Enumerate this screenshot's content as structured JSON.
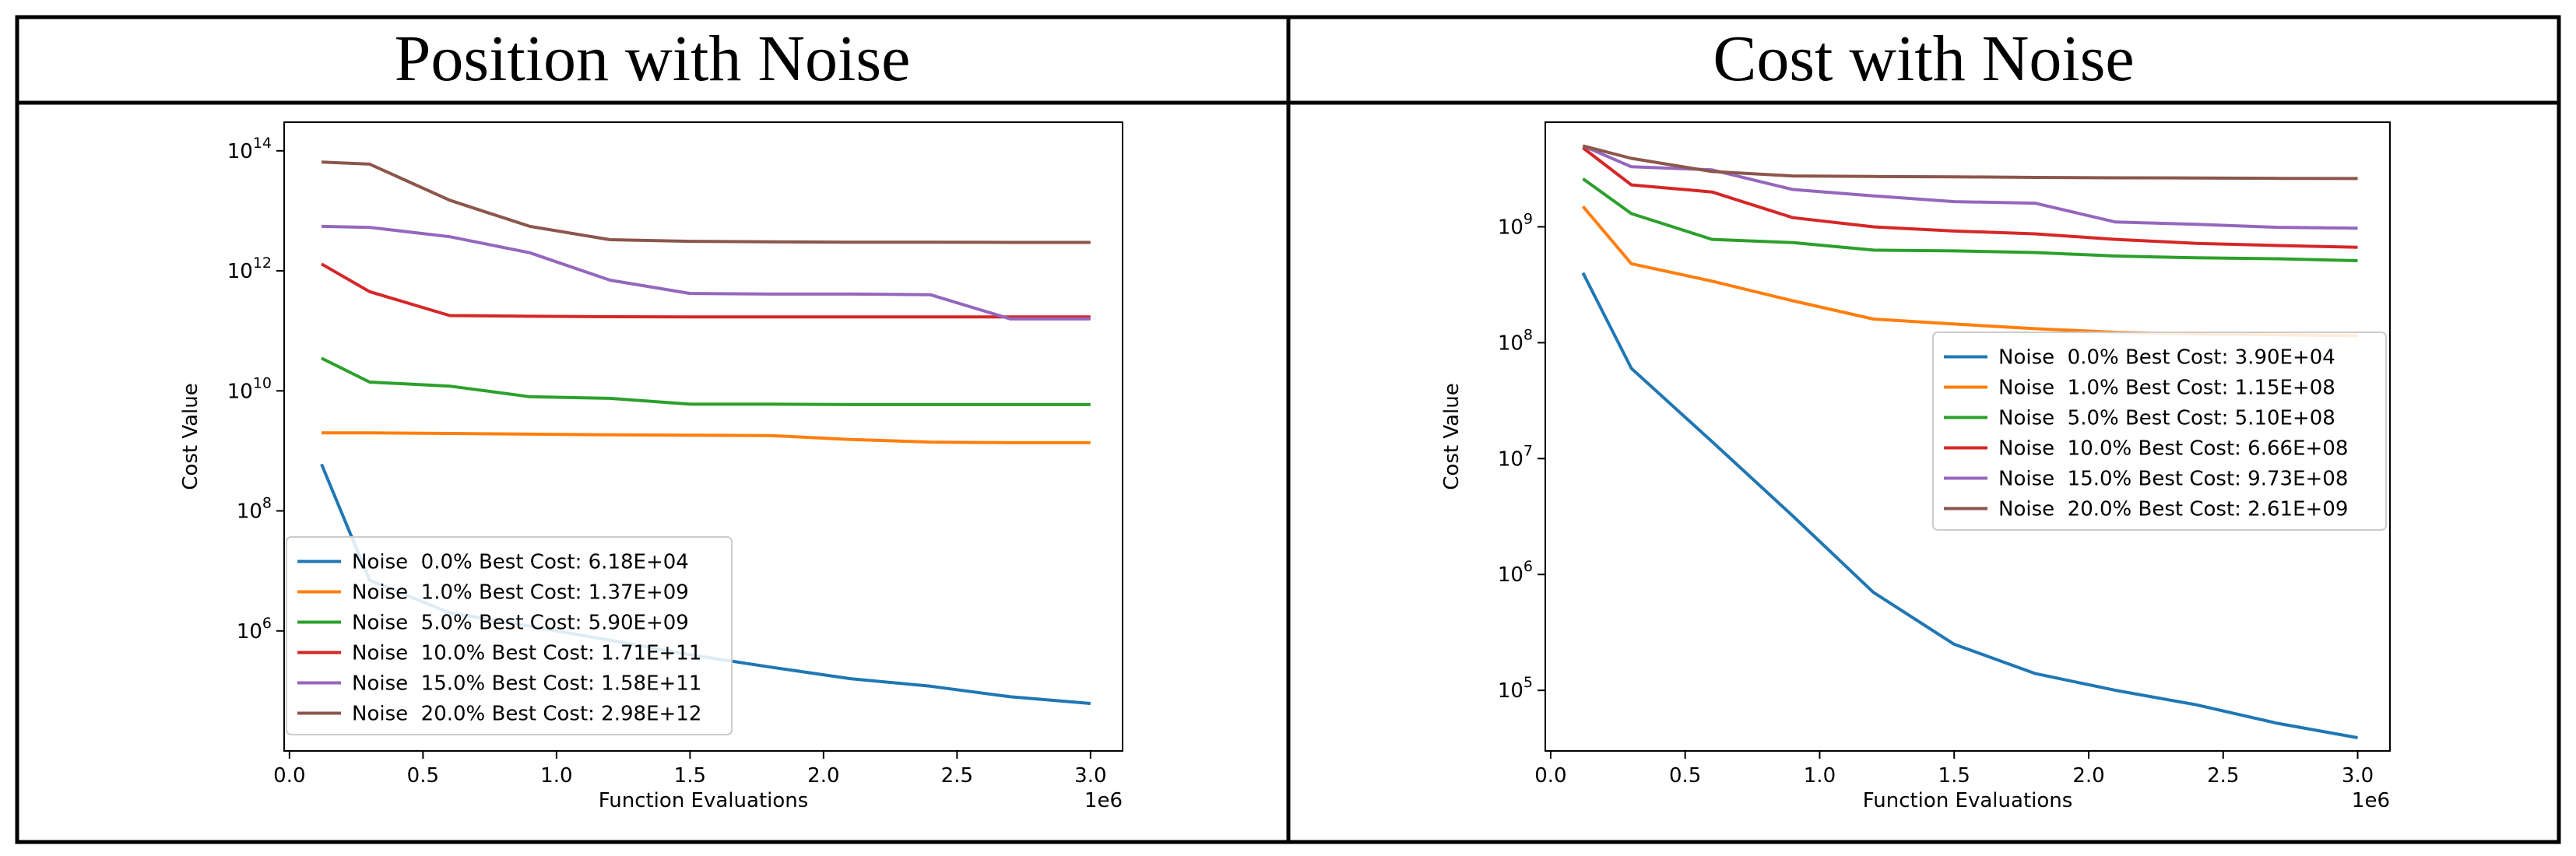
{
  "panels": [
    {
      "title": "Position with Noise",
      "chart_data": {
        "type": "line",
        "xlabel": "Function Evaluations",
        "ylabel": "Cost Value",
        "x_offset_label": "1e6",
        "xscale": "linear",
        "yscale": "log",
        "xlim": [
          -0.02,
          3.12
        ],
        "ylim": [
          10000.0,
          300000000000000.0
        ],
        "xticks": [
          0.0,
          0.5,
          1.0,
          1.5,
          2.0,
          2.5,
          3.0
        ],
        "xtick_labels": [
          "0.0",
          "0.5",
          "1.0",
          "1.5",
          "2.0",
          "2.5",
          "3.0"
        ],
        "yticks": [
          1000000.0,
          100000000.0,
          10000000000.0,
          1000000000000.0,
          100000000000000.0
        ],
        "ytick_labels": [
          {
            "base": "10",
            "exp": "6"
          },
          {
            "base": "10",
            "exp": "8"
          },
          {
            "base": "10",
            "exp": "10"
          },
          {
            "base": "10",
            "exp": "12"
          },
          {
            "base": "10",
            "exp": "14"
          }
        ],
        "grid": false,
        "legend_position": "lower-left",
        "x": [
          0.12,
          0.3,
          0.6,
          0.9,
          1.2,
          1.5,
          1.8,
          2.1,
          2.4,
          2.7,
          3.0
        ],
        "series": [
          {
            "name": "Noise  0.0% Best Cost: 6.18E+04",
            "color": "#1f77b4",
            "values": [
              600000000,
              7000000,
              2000000,
              1200000,
              700000,
              400000,
              250000,
              160000,
              120000,
              80000,
              61800
            ]
          },
          {
            "name": "Noise  1.0% Best Cost: 1.37E+09",
            "color": "#ff7f0e",
            "values": [
              2000000000,
              2000000000,
              1950000000,
              1900000000,
              1850000000,
              1820000000,
              1800000000,
              1550000000,
              1400000000,
              1370000000,
              1370000000
            ]
          },
          {
            "name": "Noise  5.0% Best Cost: 5.90E+09",
            "color": "#2ca02c",
            "values": [
              35000000000,
              14000000000,
              12000000000,
              8000000000,
              7500000000,
              6000000000,
              6000000000,
              5900000000,
              5900000000,
              5900000000,
              5900000000
            ]
          },
          {
            "name": "Noise  10.0% Best Cost: 1.71E+11",
            "color": "#d62728",
            "values": [
              1300000000000,
              450000000000,
              180000000000,
              175000000000,
              172000000000,
              171000000000,
              171000000000,
              171000000000,
              171000000000,
              171000000000,
              171000000000
            ]
          },
          {
            "name": "Noise  15.0% Best Cost: 1.58E+11",
            "color": "#9467bd",
            "values": [
              5500000000000,
              5300000000000,
              3700000000000,
              2000000000000,
              700000000000,
              420000000000,
              410000000000,
              410000000000,
              400000000000,
              158000000000,
              158000000000
            ]
          },
          {
            "name": "Noise  20.0% Best Cost: 2.98E+12",
            "color": "#8c564b",
            "values": [
              65000000000000,
              60000000000000,
              15000000000000,
              5500000000000,
              3300000000000,
              3100000000000,
              3050000000000,
              3000000000000,
              3000000000000,
              2980000000000,
              2980000000000
            ]
          }
        ]
      }
    },
    {
      "title": "Cost with Noise",
      "chart_data": {
        "type": "line",
        "xlabel": "Function Evaluations",
        "ylabel": "Cost Value",
        "x_offset_label": "1e6",
        "xscale": "linear",
        "yscale": "log",
        "xlim": [
          -0.02,
          3.12
        ],
        "ylim": [
          30000.0,
          8000000000.0
        ],
        "xticks": [
          0.0,
          0.5,
          1.0,
          1.5,
          2.0,
          2.5,
          3.0
        ],
        "xtick_labels": [
          "0.0",
          "0.5",
          "1.0",
          "1.5",
          "2.0",
          "2.5",
          "3.0"
        ],
        "yticks": [
          100000.0,
          1000000.0,
          10000000.0,
          100000000.0,
          1000000000.0
        ],
        "ytick_labels": [
          {
            "base": "10",
            "exp": "5"
          },
          {
            "base": "10",
            "exp": "6"
          },
          {
            "base": "10",
            "exp": "7"
          },
          {
            "base": "10",
            "exp": "8"
          },
          {
            "base": "10",
            "exp": "9"
          }
        ],
        "grid": false,
        "legend_position": "center-right",
        "x": [
          0.12,
          0.3,
          0.6,
          0.9,
          1.2,
          1.5,
          1.8,
          2.1,
          2.4,
          2.7,
          3.0
        ],
        "series": [
          {
            "name": "Noise  0.0% Best Cost: 3.90E+04",
            "color": "#1f77b4",
            "values": [
              400000000,
              60000000,
              14000000,
              3200000,
              700000,
              250000,
              140000,
              100000,
              75000,
              52000,
              39000
            ]
          },
          {
            "name": "Noise  1.0% Best Cost: 1.15E+08",
            "color": "#ff7f0e",
            "values": [
              1500000000,
              480000000,
              340000000,
              230000000,
              160000000,
              145000000,
              132000000,
              123000000,
              119000000,
              117000000,
              115000000
            ]
          },
          {
            "name": "Noise  5.0% Best Cost: 5.10E+08",
            "color": "#2ca02c",
            "values": [
              2600000000,
              1300000000,
              780000000,
              730000000,
              630000000,
              620000000,
              600000000,
              560000000,
              540000000,
              530000000,
              510000000
            ]
          },
          {
            "name": "Noise  10.0% Best Cost: 6.66E+08",
            "color": "#d62728",
            "values": [
              4800000000,
              2300000000,
              2000000000,
              1200000000,
              1000000000,
              920000000,
              870000000,
              780000000,
              720000000,
              690000000,
              666000000
            ]
          },
          {
            "name": "Noise  15.0% Best Cost: 9.73E+08",
            "color": "#9467bd",
            "values": [
              5000000000,
              3300000000,
              3100000000,
              2100000000,
              1850000000,
              1650000000,
              1600000000,
              1100000000,
              1050000000,
              990000000,
              973000000
            ]
          },
          {
            "name": "Noise  20.0% Best Cost: 2.61E+09",
            "color": "#8c564b",
            "values": [
              5000000000,
              3900000000,
              3000000000,
              2750000000,
              2720000000,
              2700000000,
              2670000000,
              2650000000,
              2640000000,
              2620000000,
              2610000000
            ]
          }
        ]
      }
    }
  ]
}
